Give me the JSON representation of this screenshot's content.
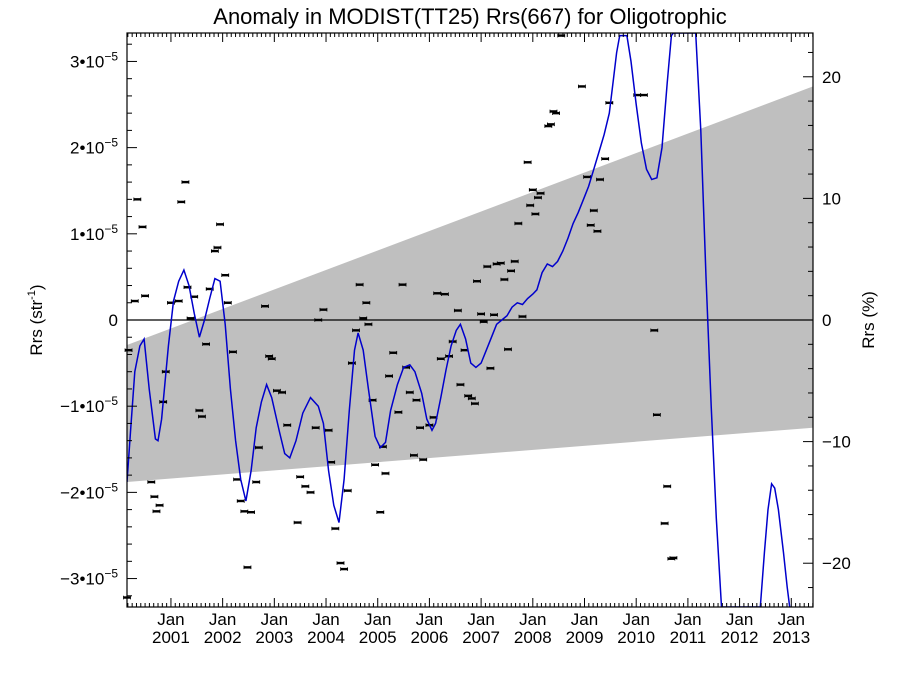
{
  "chart_data": {
    "type": "line",
    "title": "Anomaly in MODIST(TT25) Rrs(667) for Oligotrophic",
    "ylabel_left": {
      "base": "Rrs (str",
      "sup": "-1",
      "tail": ")"
    },
    "ylabel_right": "Rrs (%)",
    "xlim": [
      2000.15,
      2013.42
    ],
    "ylim": [
      -3.33e-05,
      3.33e-05
    ],
    "ylim_right": [
      -23.6,
      23.6
    ],
    "grid": false,
    "legend": "none",
    "colors": {
      "line": "#0000cc",
      "band": "#bfbfbf",
      "points": "#000000",
      "zero": "#000000"
    },
    "y_ticks_left": [
      {
        "value": 3e-05,
        "mant": "3•10",
        "exp": "−5"
      },
      {
        "value": 2e-05,
        "mant": "2•10",
        "exp": "−5"
      },
      {
        "value": 1e-05,
        "mant": "1•10",
        "exp": "−5"
      },
      {
        "value": 0,
        "mant": "0",
        "exp": ""
      },
      {
        "value": -1e-05,
        "mant": "−1•10",
        "exp": "−5"
      },
      {
        "value": -2e-05,
        "mant": "−2•10",
        "exp": "−5"
      },
      {
        "value": -3e-05,
        "mant": "−3•10",
        "exp": "−5"
      }
    ],
    "y_ticks_right": [
      {
        "value": 20,
        "label": "20"
      },
      {
        "value": 10,
        "label": "10"
      },
      {
        "value": 0,
        "label": "0"
      },
      {
        "value": -10,
        "label": "−10"
      },
      {
        "value": -20,
        "label": "−20"
      }
    ],
    "x_ticks": [
      {
        "value": 2001.0,
        "month": "Jan",
        "year": "2001"
      },
      {
        "value": 2002.0,
        "month": "Jan",
        "year": "2002"
      },
      {
        "value": 2003.0,
        "month": "Jan",
        "year": "2003"
      },
      {
        "value": 2004.0,
        "month": "Jan",
        "year": "2004"
      },
      {
        "value": 2005.0,
        "month": "Jan",
        "year": "2005"
      },
      {
        "value": 2006.0,
        "month": "Jan",
        "year": "2006"
      },
      {
        "value": 2007.0,
        "month": "Jan",
        "year": "2007"
      },
      {
        "value": 2008.0,
        "month": "Jan",
        "year": "2008"
      },
      {
        "value": 2009.0,
        "month": "Jan",
        "year": "2009"
      },
      {
        "value": 2010.0,
        "month": "Jan",
        "year": "2010"
      },
      {
        "value": 2011.0,
        "month": "Jan",
        "year": "2011"
      },
      {
        "value": 2012.0,
        "month": "Jan",
        "year": "2012"
      },
      {
        "value": 2013.0,
        "month": "Jan",
        "year": "2013"
      }
    ],
    "band": {
      "upper": [
        [
          2000.15,
          -2.9e-06
        ],
        [
          2013.42,
          2.71e-05
        ]
      ],
      "lower": [
        [
          2000.15,
          -1.88e-05
        ],
        [
          2013.42,
          -1.25e-05
        ]
      ]
    },
    "series": [
      {
        "kind": "line",
        "values": [
          [
            2000.15,
            -1.88e-05
          ],
          [
            2000.22,
            -1.28e-05
          ],
          [
            2000.3,
            -6e-06
          ],
          [
            2000.4,
            -3e-06
          ],
          [
            2000.48,
            -2.2e-06
          ],
          [
            2000.58,
            -8e-06
          ],
          [
            2000.7,
            -1.38e-05
          ],
          [
            2000.75,
            -1.4e-05
          ],
          [
            2000.82,
            -1.15e-05
          ],
          [
            2000.95,
            -3e-06
          ],
          [
            2001.05,
            2.2e-06
          ],
          [
            2001.15,
            4.5e-06
          ],
          [
            2001.25,
            5.8e-06
          ],
          [
            2001.35,
            4e-06
          ],
          [
            2001.45,
            8e-07
          ],
          [
            2001.55,
            -2e-06
          ],
          [
            2001.65,
            0.0
          ],
          [
            2001.75,
            2.5e-06
          ],
          [
            2001.85,
            4.8e-06
          ],
          [
            2001.95,
            4.5e-06
          ],
          [
            2002.05,
            -5e-07
          ],
          [
            2002.15,
            -8e-06
          ],
          [
            2002.25,
            -1.4e-05
          ],
          [
            2002.35,
            -1.85e-05
          ],
          [
            2002.45,
            -2.1e-05
          ],
          [
            2002.55,
            -1.75e-05
          ],
          [
            2002.65,
            -1.25e-05
          ],
          [
            2002.75,
            -9.5e-06
          ],
          [
            2002.85,
            -7.5e-06
          ],
          [
            2002.95,
            -9e-06
          ],
          [
            2003.1,
            -1.3e-05
          ],
          [
            2003.2,
            -1.55e-05
          ],
          [
            2003.3,
            -1.6e-05
          ],
          [
            2003.42,
            -1.4e-05
          ],
          [
            2003.55,
            -1.08e-05
          ],
          [
            2003.7,
            -9e-06
          ],
          [
            2003.85,
            -1e-05
          ],
          [
            2003.95,
            -1.2e-05
          ],
          [
            2004.05,
            -1.75e-05
          ],
          [
            2004.15,
            -2.15e-05
          ],
          [
            2004.25,
            -2.35e-05
          ],
          [
            2004.35,
            -1.85e-05
          ],
          [
            2004.45,
            -1.05e-05
          ],
          [
            2004.55,
            -3.5e-06
          ],
          [
            2004.62,
            -1.5e-06
          ],
          [
            2004.72,
            -3.5e-06
          ],
          [
            2004.82,
            -8e-06
          ],
          [
            2004.95,
            -1.35e-05
          ],
          [
            2005.05,
            -1.48e-05
          ],
          [
            2005.15,
            -1.42e-05
          ],
          [
            2005.25,
            -1.05e-05
          ],
          [
            2005.38,
            -7.5e-06
          ],
          [
            2005.5,
            -5.5e-06
          ],
          [
            2005.62,
            -5.2e-06
          ],
          [
            2005.72,
            -6e-06
          ],
          [
            2005.85,
            -8.5e-06
          ],
          [
            2005.95,
            -1.15e-05
          ],
          [
            2006.05,
            -1.28e-05
          ],
          [
            2006.12,
            -1.2e-05
          ],
          [
            2006.22,
            -9e-06
          ],
          [
            2006.32,
            -5.8e-06
          ],
          [
            2006.42,
            -3e-06
          ],
          [
            2006.52,
            -1.2e-06
          ],
          [
            2006.6,
            -5e-07
          ],
          [
            2006.7,
            -2.2e-06
          ],
          [
            2006.8,
            -5e-06
          ],
          [
            2006.9,
            -5.5e-06
          ],
          [
            2007.0,
            -5e-06
          ],
          [
            2007.1,
            -3.5e-06
          ],
          [
            2007.2,
            -2e-06
          ],
          [
            2007.3,
            -5e-07
          ],
          [
            2007.4,
            0.0
          ],
          [
            2007.5,
            5e-07
          ],
          [
            2007.6,
            1.5e-06
          ],
          [
            2007.7,
            2e-06
          ],
          [
            2007.8,
            1.8e-06
          ],
          [
            2007.9,
            2.5e-06
          ],
          [
            2008.0,
            3e-06
          ],
          [
            2008.08,
            3.5e-06
          ],
          [
            2008.18,
            5.5e-06
          ],
          [
            2008.28,
            6.5e-06
          ],
          [
            2008.38,
            6.2e-06
          ],
          [
            2008.48,
            6.8e-06
          ],
          [
            2008.58,
            8e-06
          ],
          [
            2008.68,
            9.5e-06
          ],
          [
            2008.78,
            1.12e-05
          ],
          [
            2008.88,
            1.25e-05
          ],
          [
            2008.98,
            1.4e-05
          ],
          [
            2009.08,
            1.55e-05
          ],
          [
            2009.18,
            1.75e-05
          ],
          [
            2009.28,
            1.95e-05
          ],
          [
            2009.38,
            2.15e-05
          ],
          [
            2009.48,
            2.4e-05
          ],
          [
            2009.56,
            2.8e-05
          ],
          [
            2009.62,
            3.1e-05
          ],
          [
            2009.68,
            3.3e-05
          ],
          [
            2009.75,
            3.3e-05
          ],
          [
            2009.82,
            3.3e-05
          ],
          [
            2009.9,
            3e-05
          ],
          [
            2010.0,
            2.5e-05
          ],
          [
            2010.1,
            2.05e-05
          ],
          [
            2010.2,
            1.75e-05
          ],
          [
            2010.3,
            1.63e-05
          ],
          [
            2010.4,
            1.65e-05
          ],
          [
            2010.5,
            2e-05
          ],
          [
            2010.6,
            2.75e-05
          ],
          [
            2010.68,
            3.3e-05
          ],
          [
            2010.72,
            3.33e-05
          ],
          [
            2011.15,
            3.33e-05
          ],
          [
            2011.25,
            2.2e-05
          ],
          [
            2011.35,
            5e-06
          ],
          [
            2011.45,
            -1e-05
          ],
          [
            2011.55,
            -2.3e-05
          ],
          [
            2011.65,
            -3.33e-05
          ],
          [
            2012.4,
            -3.33e-05
          ],
          [
            2012.48,
            -2.7e-05
          ],
          [
            2012.55,
            -2.2e-05
          ],
          [
            2012.62,
            -1.9e-05
          ],
          [
            2012.68,
            -1.95e-05
          ],
          [
            2012.75,
            -2.2e-05
          ],
          [
            2012.85,
            -2.7e-05
          ],
          [
            2012.92,
            -3.1e-05
          ],
          [
            2012.97,
            -3.33e-05
          ]
        ]
      },
      {
        "kind": "points",
        "values": [
          [
            2000.18,
            -3.5e-06
          ],
          [
            2000.3,
            2.2e-06
          ],
          [
            2000.35,
            1.4e-05
          ],
          [
            2000.45,
            1.08e-05
          ],
          [
            2000.5,
            2.8e-06
          ],
          [
            2000.62,
            -1.88e-05
          ],
          [
            2000.68,
            -2.05e-05
          ],
          [
            2000.72,
            -2.22e-05
          ],
          [
            2000.78,
            -2.15e-05
          ],
          [
            2000.85,
            -9.5e-06
          ],
          [
            2000.9,
            -6e-06
          ],
          [
            2001.0,
            2e-06
          ],
          [
            2001.15,
            2.2e-06
          ],
          [
            2001.2,
            1.37e-05
          ],
          [
            2001.28,
            1.6e-05
          ],
          [
            2001.32,
            3.8e-06
          ],
          [
            2001.38,
            2e-07
          ],
          [
            2001.45,
            2.7e-06
          ],
          [
            2001.55,
            -1.05e-05
          ],
          [
            2001.6,
            -1.12e-05
          ],
          [
            2001.68,
            -2.8e-06
          ],
          [
            2001.75,
            3.6e-06
          ],
          [
            2001.85,
            8e-06
          ],
          [
            2001.9,
            8.4e-06
          ],
          [
            2001.95,
            1.11e-05
          ],
          [
            2002.05,
            5.2e-06
          ],
          [
            2002.1,
            2e-06
          ],
          [
            2002.2,
            -3.7e-06
          ],
          [
            2002.28,
            -1.85e-05
          ],
          [
            2002.35,
            -2.1e-05
          ],
          [
            2002.42,
            -2.22e-05
          ],
          [
            2002.48,
            -2.87e-05
          ],
          [
            2002.55,
            -2.23e-05
          ],
          [
            2002.65,
            -1.88e-05
          ],
          [
            2002.7,
            -1.48e-05
          ],
          [
            2002.82,
            1.6e-06
          ],
          [
            2002.9,
            -4.2e-06
          ],
          [
            2002.95,
            -4.5e-06
          ],
          [
            2003.05,
            -8.2e-06
          ],
          [
            2003.15,
            -8.4e-06
          ],
          [
            2003.25,
            -1.22e-05
          ],
          [
            2003.45,
            -2.35e-05
          ],
          [
            2003.5,
            -1.82e-05
          ],
          [
            2003.6,
            -1.93e-05
          ],
          [
            2003.7,
            -2e-05
          ],
          [
            2003.8,
            -1.25e-05
          ],
          [
            2003.85,
            0.0
          ],
          [
            2003.95,
            1.2e-06
          ],
          [
            2004.05,
            -1.28e-05
          ],
          [
            2004.1,
            -1.65e-05
          ],
          [
            2004.18,
            -2.42e-05
          ],
          [
            2004.28,
            -2.82e-05
          ],
          [
            2004.35,
            -2.89e-05
          ],
          [
            2004.42,
            -1.98e-05
          ],
          [
            2004.5,
            -5e-06
          ],
          [
            2004.58,
            -1.2e-06
          ],
          [
            2004.65,
            4.1e-06
          ],
          [
            2004.72,
            2e-07
          ],
          [
            2004.78,
            2e-06
          ],
          [
            2004.82,
            -5e-07
          ],
          [
            2004.9,
            -9.3e-06
          ],
          [
            2004.95,
            -1.68e-05
          ],
          [
            2005.05,
            -2.23e-05
          ],
          [
            2005.1,
            -1.47e-05
          ],
          [
            2005.15,
            -1.78e-05
          ],
          [
            2005.22,
            -6.5e-06
          ],
          [
            2005.3,
            -3.8e-06
          ],
          [
            2005.4,
            -1.07e-05
          ],
          [
            2005.48,
            4.1e-06
          ],
          [
            2005.55,
            -5.5e-06
          ],
          [
            2005.62,
            -8.4e-06
          ],
          [
            2005.7,
            -1.57e-05
          ],
          [
            2005.75,
            -9.3e-06
          ],
          [
            2005.82,
            -1.25e-05
          ],
          [
            2005.88,
            -1.62e-05
          ],
          [
            2006.0,
            -1.22e-05
          ],
          [
            2006.08,
            -1.13e-05
          ],
          [
            2006.15,
            3.1e-06
          ],
          [
            2006.22,
            -4.5e-06
          ],
          [
            2006.3,
            3e-06
          ],
          [
            2006.38,
            -4.2e-06
          ],
          [
            2006.45,
            -2.5e-06
          ],
          [
            2006.55,
            1.1e-06
          ],
          [
            2006.6,
            -7.5e-06
          ],
          [
            2006.68,
            -3.5e-06
          ],
          [
            2006.75,
            -8.8e-06
          ],
          [
            2006.82,
            -9.1e-06
          ],
          [
            2006.88,
            -9.7e-06
          ],
          [
            2006.92,
            4.5e-06
          ],
          [
            2007.0,
            7e-07
          ],
          [
            2007.05,
            -2e-07
          ],
          [
            2007.12,
            6.2e-06
          ],
          [
            2007.18,
            -5.6e-06
          ],
          [
            2007.25,
            6e-07
          ],
          [
            2007.3,
            6.5e-06
          ],
          [
            2007.38,
            6.6e-06
          ],
          [
            2007.45,
            4.7e-06
          ],
          [
            2007.52,
            -3.4e-06
          ],
          [
            2007.58,
            5.7e-06
          ],
          [
            2007.65,
            6.8e-06
          ],
          [
            2007.72,
            1.12e-05
          ],
          [
            2007.8,
            4e-07
          ],
          [
            2007.9,
            1.83e-05
          ],
          [
            2007.95,
            1.33e-05
          ],
          [
            2008.0,
            1.51e-05
          ],
          [
            2008.05,
            1.23e-05
          ],
          [
            2008.1,
            1.42e-05
          ],
          [
            2008.15,
            1.47e-05
          ],
          [
            2008.3,
            2.25e-05
          ],
          [
            2008.35,
            2.27e-05
          ],
          [
            2008.4,
            2.42e-05
          ],
          [
            2008.45,
            2.4e-05
          ],
          [
            2008.55,
            3.3e-05
          ],
          [
            2008.95,
            2.71e-05
          ],
          [
            2009.05,
            1.66e-05
          ],
          [
            2009.12,
            1.1e-05
          ],
          [
            2009.18,
            1.27e-05
          ],
          [
            2009.25,
            1.03e-05
          ],
          [
            2009.3,
            1.63e-05
          ],
          [
            2009.4,
            1.87e-05
          ],
          [
            2009.48,
            2.52e-05
          ],
          [
            2010.02,
            2.61e-05
          ],
          [
            2010.15,
            2.61e-05
          ],
          [
            2010.35,
            -1.2e-06
          ],
          [
            2010.4,
            -1.1e-05
          ],
          [
            2010.55,
            -2.36e-05
          ],
          [
            2010.6,
            -1.93e-05
          ],
          [
            2010.68,
            -2.77e-05
          ],
          [
            2010.72,
            -2.76e-05
          ],
          [
            2000.15,
            -3.22e-05
          ]
        ]
      }
    ]
  }
}
